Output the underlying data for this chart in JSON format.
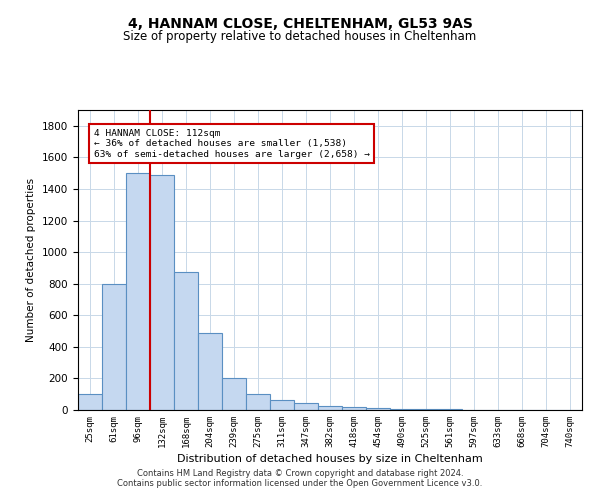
{
  "title1": "4, HANNAM CLOSE, CHELTENHAM, GL53 9AS",
  "title2": "Size of property relative to detached houses in Cheltenham",
  "xlabel": "Distribution of detached houses by size in Cheltenham",
  "ylabel": "Number of detached properties",
  "bins": [
    "25sqm",
    "61sqm",
    "96sqm",
    "132sqm",
    "168sqm",
    "204sqm",
    "239sqm",
    "275sqm",
    "311sqm",
    "347sqm",
    "382sqm",
    "418sqm",
    "454sqm",
    "490sqm",
    "525sqm",
    "561sqm",
    "597sqm",
    "633sqm",
    "668sqm",
    "704sqm",
    "740sqm"
  ],
  "values": [
    100,
    800,
    1500,
    1490,
    875,
    490,
    205,
    100,
    65,
    42,
    28,
    20,
    15,
    7,
    5,
    4,
    3,
    2,
    2,
    2,
    0
  ],
  "bar_color": "#c5d8f0",
  "bar_edge_color": "#5a8fc2",
  "vline_color": "#cc0000",
  "vline_x": 2.5,
  "annotation_line1": "4 HANNAM CLOSE: 112sqm",
  "annotation_line2": "← 36% of detached houses are smaller (1,538)",
  "annotation_line3": "63% of semi-detached houses are larger (2,658) →",
  "annotation_box_color": "#cc0000",
  "ylim": [
    0,
    1900
  ],
  "yticks": [
    0,
    200,
    400,
    600,
    800,
    1000,
    1200,
    1400,
    1600,
    1800
  ],
  "footer1": "Contains HM Land Registry data © Crown copyright and database right 2024.",
  "footer2": "Contains public sector information licensed under the Open Government Licence v3.0.",
  "background_color": "#ffffff",
  "grid_color": "#c8d8e8"
}
